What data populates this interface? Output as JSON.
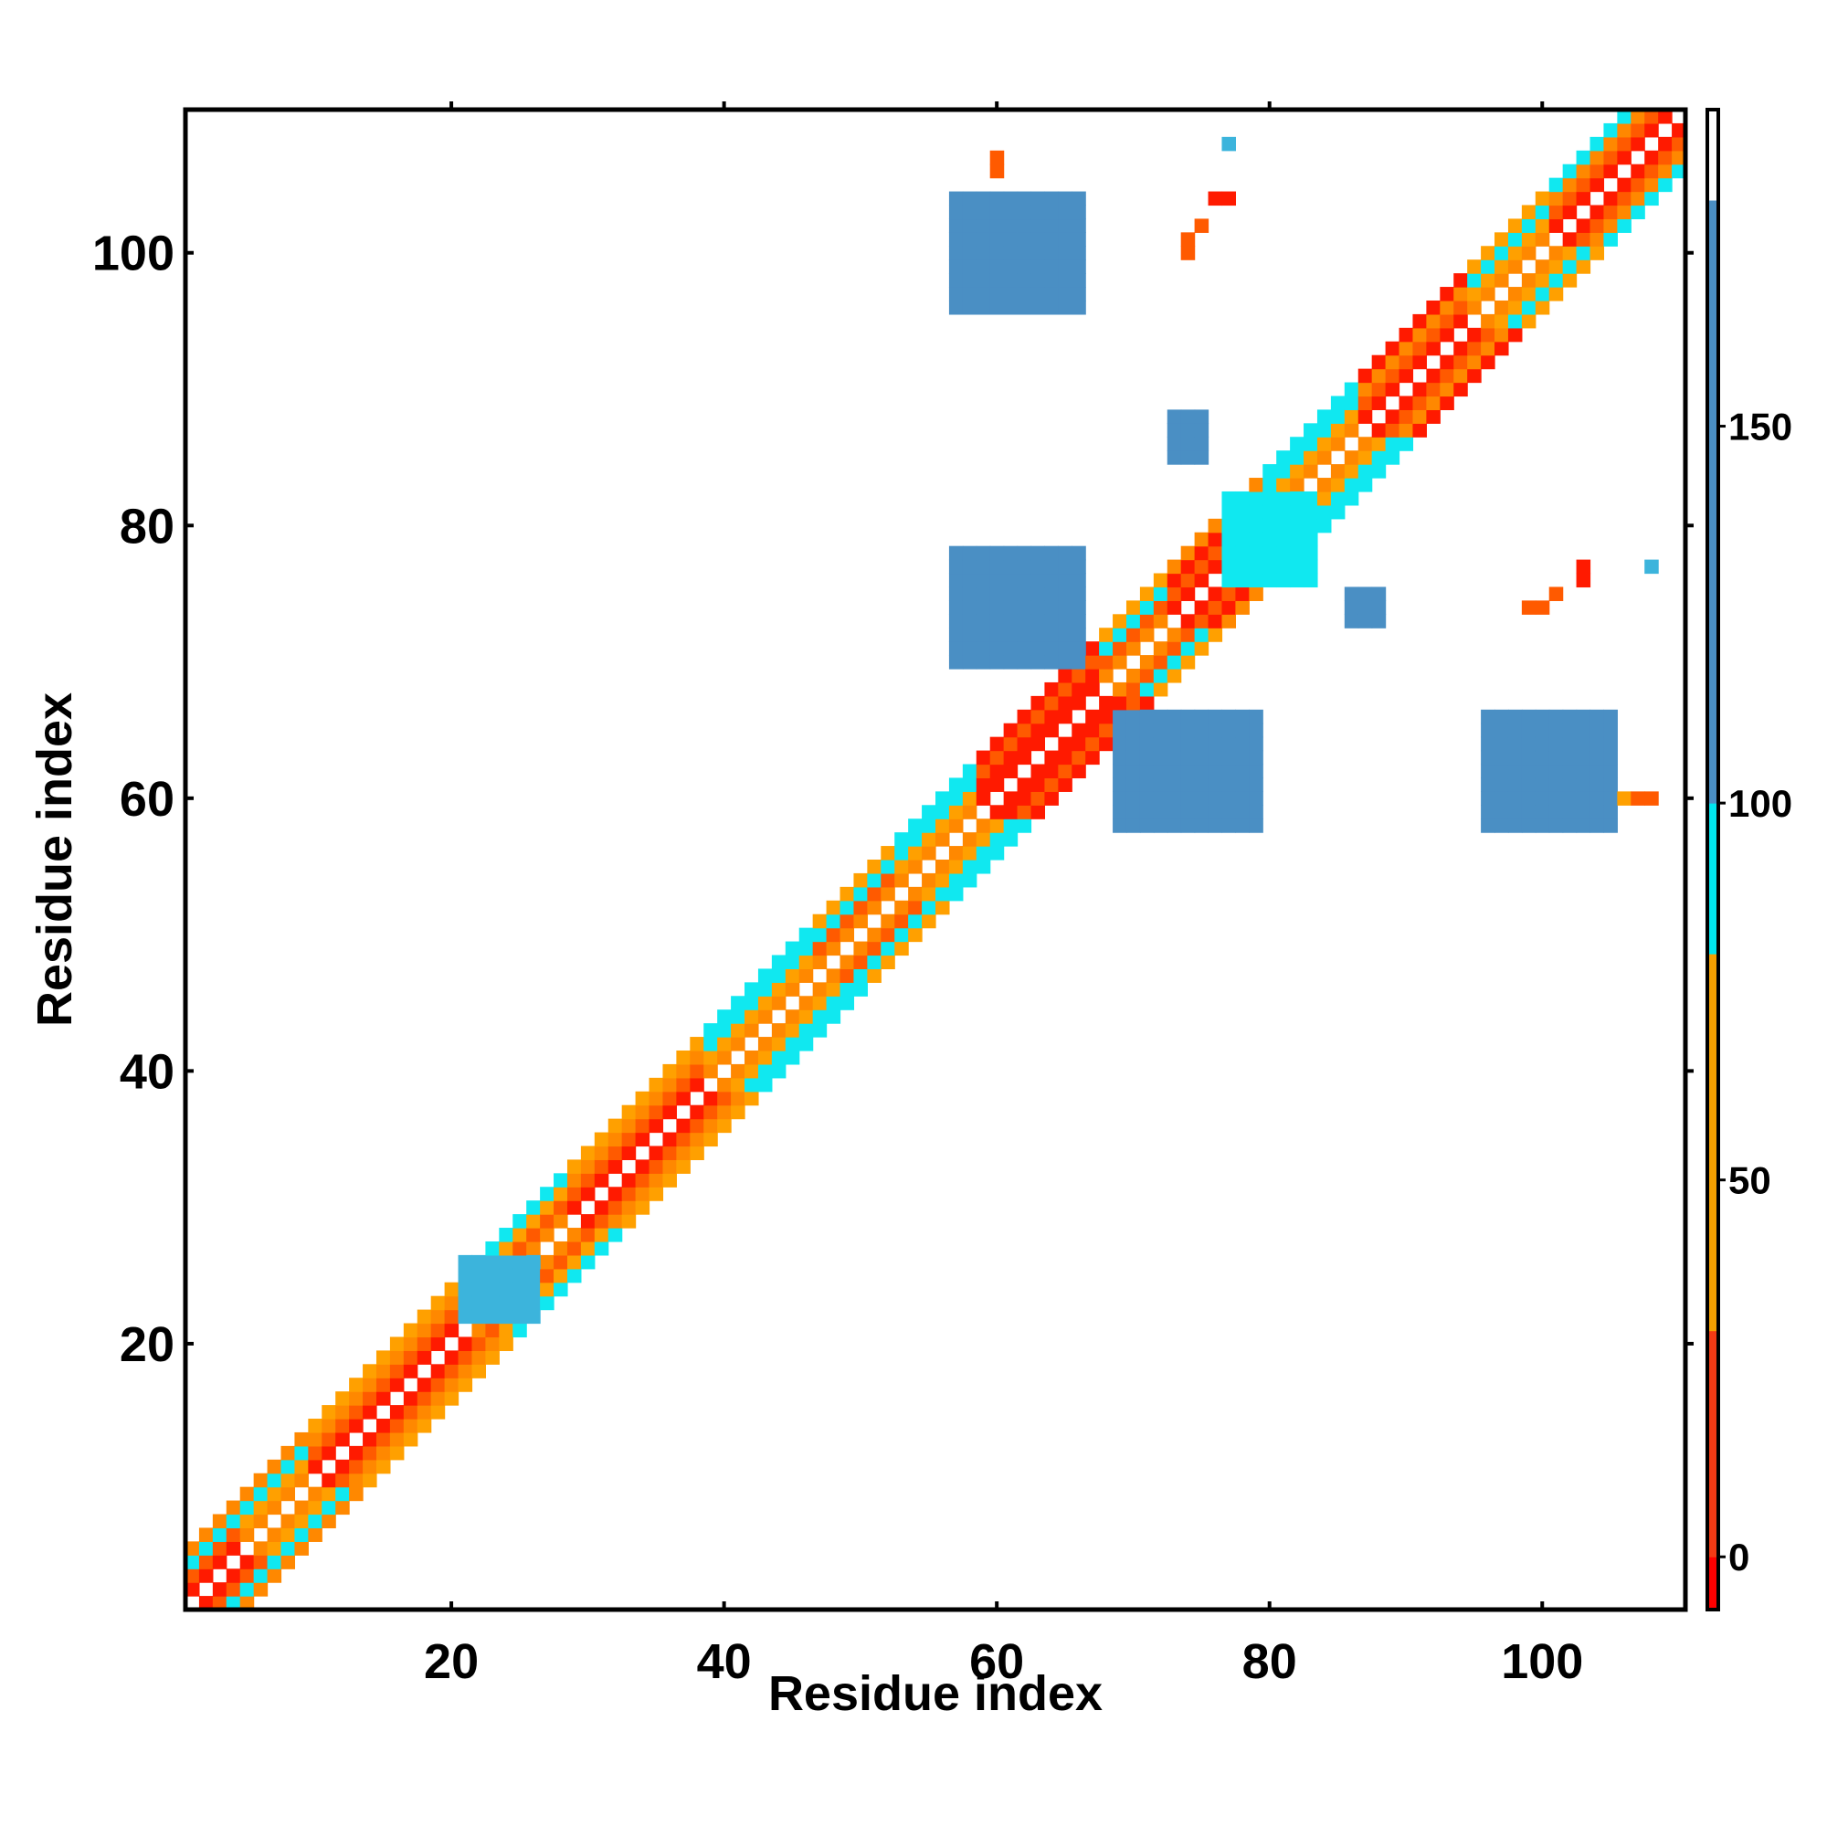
{
  "chart_data": {
    "type": "heatmap",
    "title": "",
    "xlabel": "Residue index",
    "ylabel": "Residue index",
    "xlim": [
      0.5,
      110.5
    ],
    "ylim": [
      0.5,
      110.5
    ],
    "xticks": [
      20,
      40,
      60,
      80,
      100
    ],
    "yticks": [
      20,
      40,
      60,
      80,
      100
    ],
    "grid": false,
    "colorbar": {
      "ticks": [
        0,
        50,
        100,
        150
      ],
      "range": [
        -7,
        192
      ],
      "segments": [
        {
          "from": -7,
          "to": 0,
          "color": "#ff0000"
        },
        {
          "from": 0,
          "to": 30,
          "color": "#f23a14"
        },
        {
          "from": 30,
          "to": 80,
          "color": "#f5a000"
        },
        {
          "from": 80,
          "to": 100,
          "color": "#00e5ee"
        },
        {
          "from": 100,
          "to": 180,
          "color": "#4a8fc4"
        },
        {
          "from": 180,
          "to": 192,
          "color": "#ffffff"
        }
      ]
    },
    "value_colors": {
      "red": "#ff1a00",
      "red_orange": "#ff5a00",
      "orange": "#ff8800",
      "amber": "#ffa000",
      "cyan": "#10e8f0",
      "light_blue": "#3cb4dc",
      "steel_blue": "#4a8fc4"
    },
    "diagonal_bands": [
      {
        "from": 1,
        "to": 4,
        "offsets": {
          "1": "red",
          "2": "red_orange",
          "3": "cyan",
          "4": "orange"
        }
      },
      {
        "from": 5,
        "to": 9,
        "offsets": {
          "1": "orange",
          "2": "amber",
          "3": "cyan",
          "4": "orange"
        }
      },
      {
        "from": 10,
        "to": 20,
        "offsets": {
          "1": "red",
          "2": "red_orange",
          "3": "orange",
          "4": "amber"
        }
      },
      {
        "from": 21,
        "to": 28,
        "offsets": {
          "1": "orange",
          "2": "red_orange",
          "3": "amber",
          "4": "cyan"
        }
      },
      {
        "from": 29,
        "to": 38,
        "offsets": {
          "1": "red",
          "2": "red_orange",
          "3": "orange",
          "4": "amber"
        }
      },
      {
        "from": 39,
        "to": 46,
        "offsets": {
          "1": "orange",
          "2": "amber",
          "3": "cyan",
          "4": "cyan"
        }
      },
      {
        "from": 47,
        "to": 52,
        "offsets": {
          "1": "orange",
          "2": "red_orange",
          "3": "cyan",
          "4": "amber"
        }
      },
      {
        "from": 53,
        "to": 58,
        "offsets": {
          "1": "orange",
          "2": "amber",
          "3": "cyan",
          "4": "cyan"
        }
      },
      {
        "from": 59,
        "to": 67,
        "offsets": {
          "1": "red",
          "2": "red",
          "3": "red_orange",
          "4": "red"
        }
      },
      {
        "from": 68,
        "to": 72,
        "offsets": {
          "1": "orange",
          "2": "red_orange",
          "3": "cyan",
          "4": "amber"
        }
      },
      {
        "from": 73,
        "to": 79,
        "offsets": {
          "1": "red",
          "2": "red_orange",
          "3": "red",
          "4": "orange"
        }
      },
      {
        "from": 80,
        "to": 86,
        "offsets": {
          "1": "orange",
          "2": "amber",
          "3": "cyan",
          "4": "cyan"
        }
      },
      {
        "from": 87,
        "to": 94,
        "offsets": {
          "1": "red",
          "2": "red_orange",
          "3": "orange",
          "4": "red"
        }
      },
      {
        "from": 95,
        "to": 100,
        "offsets": {
          "1": "orange",
          "2": "amber",
          "3": "cyan",
          "4": "amber"
        }
      },
      {
        "from": 101,
        "to": 110,
        "offsets": {
          "1": "red",
          "2": "red_orange",
          "3": "orange",
          "4": "cyan"
        }
      }
    ],
    "contact_patches": [
      {
        "x": [
          21,
          26
        ],
        "y": [
          22,
          26
        ],
        "color": "light_blue"
      },
      {
        "x": [
          57,
          66
        ],
        "y": [
          96,
          104
        ],
        "color": "steel_blue"
      },
      {
        "x": [
          57,
          66
        ],
        "y": [
          70,
          78
        ],
        "color": "steel_blue"
      },
      {
        "x": [
          69,
          79
        ],
        "y": [
          58,
          66
        ],
        "color": "steel_blue"
      },
      {
        "x": [
          96,
          105
        ],
        "y": [
          58,
          66
        ],
        "color": "steel_blue"
      },
      {
        "x": [
          77,
          83
        ],
        "y": [
          76,
          82
        ],
        "color": "cyan"
      },
      {
        "x": [
          73,
          75
        ],
        "y": [
          85,
          88
        ],
        "color": "steel_blue"
      },
      {
        "x": [
          86,
          88
        ],
        "y": [
          73,
          75
        ],
        "color": "steel_blue"
      }
    ],
    "isolated_cells": [
      {
        "x": 60,
        "y": 107,
        "color": "red_orange"
      },
      {
        "x": 60,
        "y": 106,
        "color": "red_orange"
      },
      {
        "x": 77,
        "y": 108,
        "color": "light_blue"
      },
      {
        "x": 76,
        "y": 104,
        "color": "red"
      },
      {
        "x": 77,
        "y": 104,
        "color": "red"
      },
      {
        "x": 75,
        "y": 102,
        "color": "red_orange"
      },
      {
        "x": 74,
        "y": 101,
        "color": "red_orange"
      },
      {
        "x": 74,
        "y": 100,
        "color": "red_orange"
      },
      {
        "x": 103,
        "y": 77,
        "color": "red"
      },
      {
        "x": 103,
        "y": 76,
        "color": "red"
      },
      {
        "x": 101,
        "y": 75,
        "color": "red_orange"
      },
      {
        "x": 99,
        "y": 74,
        "color": "red_orange"
      },
      {
        "x": 100,
        "y": 74,
        "color": "red_orange"
      },
      {
        "x": 108,
        "y": 77,
        "color": "light_blue"
      },
      {
        "x": 106,
        "y": 60,
        "color": "amber"
      },
      {
        "x": 107,
        "y": 60,
        "color": "red_orange"
      },
      {
        "x": 108,
        "y": 60,
        "color": "red_orange"
      }
    ]
  }
}
